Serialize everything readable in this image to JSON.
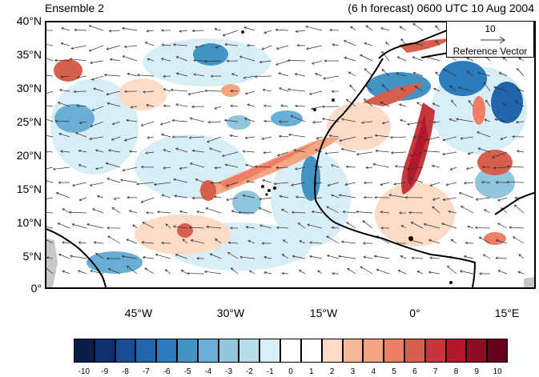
{
  "panel_title": "Ensemble 2",
  "forecast_label": "(6 h forecast) 0600 UTC 10 Aug 2004",
  "reference_vector": {
    "value": "10",
    "label": "Reference Vector"
  },
  "lat_labels": [
    "40°N",
    "35°N",
    "30°N",
    "25°N",
    "20°N",
    "15°N",
    "10°N",
    "5°N",
    "0°"
  ],
  "lon_labels": [
    "45°W",
    "30°W",
    "15°W",
    "0°",
    "15°E"
  ],
  "colorbar": {
    "labels": [
      "-10",
      "-9",
      "-8",
      "-7",
      "-6",
      "-5",
      "-4",
      "-3",
      "-2",
      "-1",
      "0",
      "1",
      "2",
      "3",
      "4",
      "5",
      "6",
      "7",
      "8",
      "9",
      "10"
    ],
    "colors": [
      "#0a1f47",
      "#0d2f6b",
      "#174c92",
      "#2166ac",
      "#2b7bbd",
      "#4393c3",
      "#6aaed6",
      "#92c5de",
      "#b7dcea",
      "#d8eef6",
      "#ffffff",
      "#ffffff",
      "#fddbc7",
      "#f7b799",
      "#f4a582",
      "#ec7f66",
      "#d6604d",
      "#c5373a",
      "#b2182b",
      "#8e0d22",
      "#67001f"
    ]
  },
  "map_extent": {
    "lon_min": -57,
    "lon_max": 20,
    "lat_min": 0,
    "lat_max": 40
  },
  "colors": {
    "frame": "#000000",
    "land_mask": "#c8c8c8",
    "vector": "#333333"
  }
}
